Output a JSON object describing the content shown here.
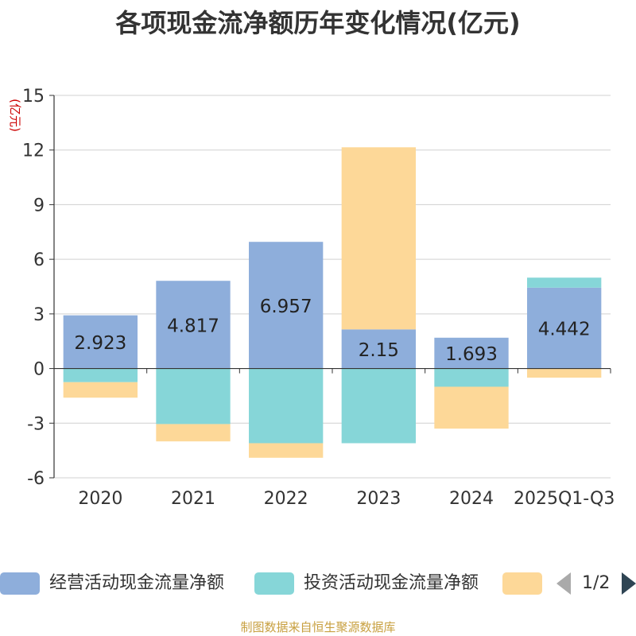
{
  "title": "各项现金流净额历年变化情况(亿元)",
  "source": "制图数据来自恒生聚源数据库",
  "unit_label": "(亿元)",
  "colors": {
    "operating": "#8eaedb",
    "investing": "#86d6d8",
    "financing": "#fdd898",
    "axis": "#333333",
    "grid": "#d0d0d0",
    "unit": "#cc0000"
  },
  "legend": {
    "items": [
      "经营活动现金流量净额",
      "投资活动现金流量净额",
      ""
    ],
    "pager_text": "1/2",
    "prev_icon": "triangle-left-icon",
    "next_icon": "triangle-right-icon"
  },
  "chart_data": {
    "type": "bar",
    "stacked": true,
    "categories": [
      "2020",
      "2021",
      "2022",
      "2023",
      "2024",
      "2025Q1-Q3"
    ],
    "ylim": [
      -6,
      15
    ],
    "yticks": [
      15,
      12,
      9,
      6,
      3,
      0,
      -3,
      -6
    ],
    "grid": true,
    "legend_position": "bottom",
    "series": [
      {
        "name": "经营活动现金流量净额",
        "values": [
          2.923,
          4.817,
          6.957,
          2.15,
          1.693,
          4.442
        ],
        "labels": [
          "2.923",
          "4.817",
          "6.957",
          "2.15",
          "1.693",
          "4.442"
        ]
      },
      {
        "name": "投资活动现金流量净额",
        "values": [
          -0.75,
          -3.05,
          -4.1,
          -4.1,
          -1.0,
          0.55
        ]
      },
      {
        "values": [
          -0.85,
          -0.95,
          -0.8,
          10.0,
          -2.3,
          -0.5
        ]
      }
    ]
  }
}
